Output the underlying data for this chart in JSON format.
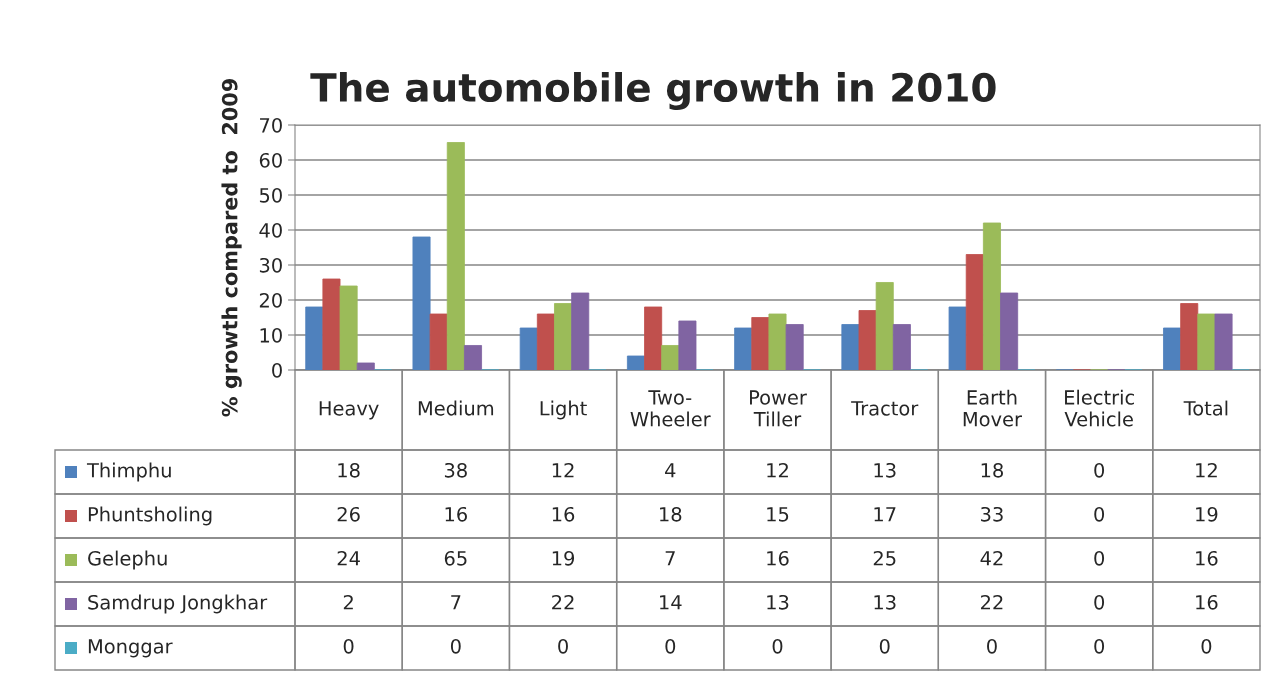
{
  "chart_data": {
    "type": "bar",
    "title": "The automobile growth in 2010",
    "ylabel": "% growth compared to  2009",
    "categories": [
      "Heavy",
      "Medium",
      "Light",
      "Two-Wheeler",
      "Power Tiller",
      "Tractor",
      "Earth Mover",
      "Electric Vehicle",
      "Total"
    ],
    "series": [
      {
        "name": "Thimphu",
        "color": "#4f81bd",
        "values": [
          18,
          38,
          12,
          4,
          12,
          13,
          18,
          0,
          12
        ]
      },
      {
        "name": "Phuntsholing",
        "color": "#c0504d",
        "values": [
          26,
          16,
          16,
          18,
          15,
          17,
          33,
          0,
          19
        ]
      },
      {
        "name": "Gelephu",
        "color": "#9bbb59",
        "values": [
          24,
          65,
          19,
          7,
          16,
          25,
          42,
          0,
          16
        ]
      },
      {
        "name": "Samdrup Jongkhar",
        "color": "#8064a2",
        "values": [
          2,
          7,
          22,
          14,
          13,
          13,
          22,
          0,
          16
        ]
      },
      {
        "name": "Monggar",
        "color": "#4bacc6",
        "values": [
          0,
          0,
          0,
          0,
          0,
          0,
          0,
          0,
          0
        ]
      }
    ],
    "ylim": [
      0,
      70
    ],
    "yticks": [
      0,
      10,
      20,
      30,
      40,
      50,
      60,
      70
    ],
    "grid": "y",
    "legend": "bottom",
    "data_labels": true
  }
}
